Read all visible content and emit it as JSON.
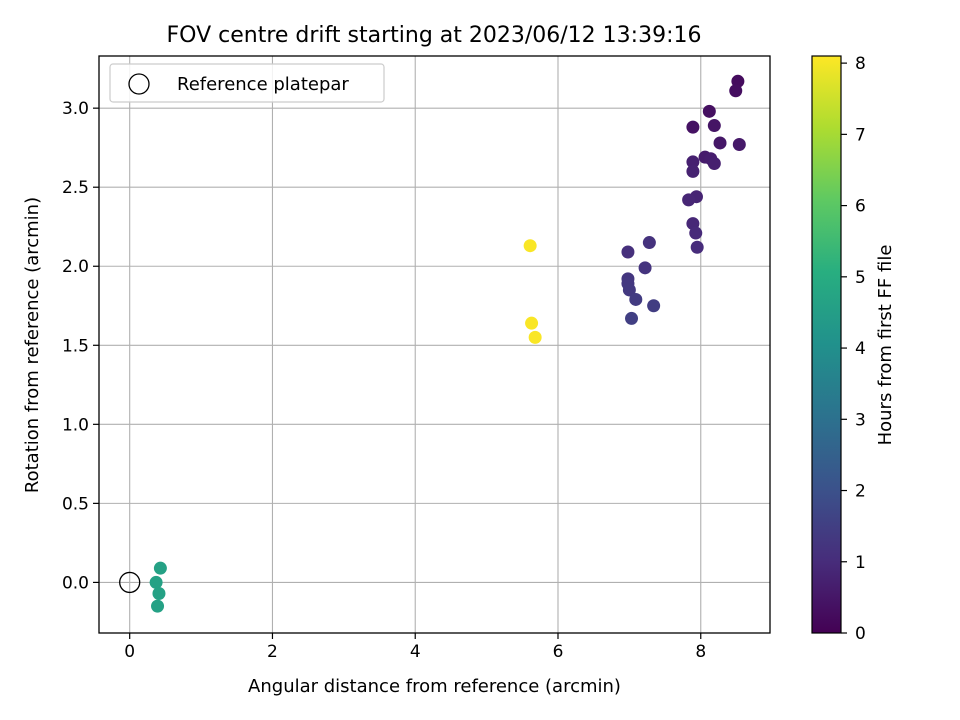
{
  "chart_data": {
    "type": "scatter",
    "title": "FOV centre drift starting at 2023/06/12 13:39:16",
    "xlabel": "Angular distance from reference (arcmin)",
    "ylabel": "Rotation from reference (arcmin)",
    "xlim": [
      -0.43,
      8.97
    ],
    "ylim": [
      -0.32,
      3.33
    ],
    "xticks": [
      0,
      2,
      4,
      6,
      8
    ],
    "yticks": [
      0.0,
      0.5,
      1.0,
      1.5,
      2.0,
      2.5,
      3.0
    ],
    "grid": true,
    "legend": {
      "placement": "top-left",
      "entries": [
        "Reference platepar"
      ]
    },
    "reference_point": {
      "x": 0,
      "y": 0,
      "label": "Reference platepar"
    },
    "colorbar": {
      "label": "Hours from first FF file",
      "range": [
        0,
        8.1
      ],
      "ticks": [
        0,
        1,
        2,
        3,
        4,
        5,
        6,
        7,
        8
      ],
      "colormap": "viridis"
    },
    "points": [
      {
        "x": 8.52,
        "y": 3.17,
        "c": 0.25
      },
      {
        "x": 8.49,
        "y": 3.11,
        "c": 0.3
      },
      {
        "x": 8.12,
        "y": 2.98,
        "c": 0.35
      },
      {
        "x": 7.89,
        "y": 2.88,
        "c": 0.4
      },
      {
        "x": 8.19,
        "y": 2.89,
        "c": 0.45
      },
      {
        "x": 8.27,
        "y": 2.78,
        "c": 0.5
      },
      {
        "x": 8.54,
        "y": 2.77,
        "c": 0.55
      },
      {
        "x": 8.06,
        "y": 2.69,
        "c": 0.6
      },
      {
        "x": 8.14,
        "y": 2.68,
        "c": 0.65
      },
      {
        "x": 8.19,
        "y": 2.65,
        "c": 0.7
      },
      {
        "x": 7.89,
        "y": 2.66,
        "c": 0.72
      },
      {
        "x": 7.89,
        "y": 2.6,
        "c": 0.75
      },
      {
        "x": 7.94,
        "y": 2.44,
        "c": 0.8
      },
      {
        "x": 7.83,
        "y": 2.42,
        "c": 0.85
      },
      {
        "x": 7.89,
        "y": 2.27,
        "c": 0.9
      },
      {
        "x": 7.93,
        "y": 2.21,
        "c": 0.95
      },
      {
        "x": 7.95,
        "y": 2.12,
        "c": 1.0
      },
      {
        "x": 6.98,
        "y": 2.09,
        "c": 1.1
      },
      {
        "x": 7.28,
        "y": 2.15,
        "c": 1.15
      },
      {
        "x": 7.22,
        "y": 1.99,
        "c": 1.2
      },
      {
        "x": 6.98,
        "y": 1.92,
        "c": 1.25
      },
      {
        "x": 6.98,
        "y": 1.89,
        "c": 1.3
      },
      {
        "x": 7.0,
        "y": 1.85,
        "c": 1.35
      },
      {
        "x": 7.09,
        "y": 1.79,
        "c": 1.4
      },
      {
        "x": 7.34,
        "y": 1.75,
        "c": 1.45
      },
      {
        "x": 7.03,
        "y": 1.67,
        "c": 1.5
      },
      {
        "x": 0.43,
        "y": 0.09,
        "c": 4.6
      },
      {
        "x": 0.37,
        "y": 0.0,
        "c": 4.6
      },
      {
        "x": 0.41,
        "y": -0.07,
        "c": 4.6
      },
      {
        "x": 0.39,
        "y": -0.15,
        "c": 4.6
      },
      {
        "x": 5.61,
        "y": 2.13,
        "c": 8.05
      },
      {
        "x": 5.63,
        "y": 1.64,
        "c": 8.05
      },
      {
        "x": 5.68,
        "y": 1.55,
        "c": 8.05
      }
    ]
  }
}
